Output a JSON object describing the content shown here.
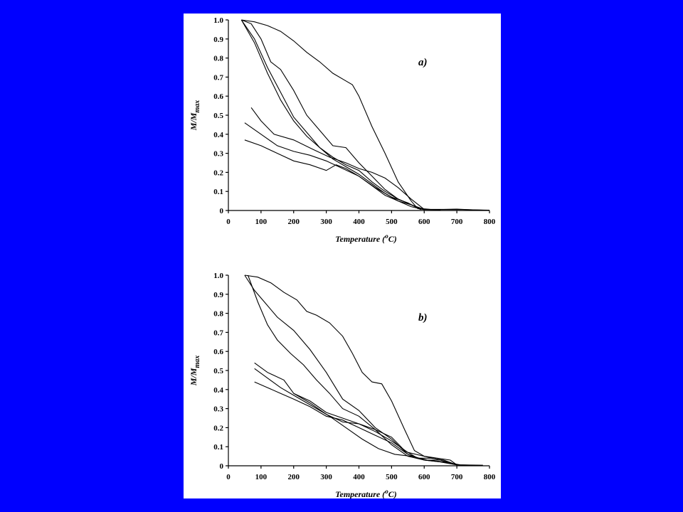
{
  "background_color": "#0000FF",
  "panel_color": "#FFFFFF",
  "chart_data": [
    {
      "type": "line",
      "panel_label": "a)",
      "xlabel": "Temperature (",
      "xlabel_sup": "o",
      "xlabel_tail": "C)",
      "ylabel": "M/M",
      "ylabel_sub": "max",
      "xlim": [
        0,
        800
      ],
      "ylim": [
        0,
        1.0
      ],
      "xticks": [
        "0",
        "100",
        "200",
        "300",
        "400",
        "500",
        "600",
        "700",
        "800"
      ],
      "yticks": [
        "0",
        "0.1",
        "0.2",
        "0.3",
        "0.4",
        "0.5",
        "0.6",
        "0.7",
        "0.8",
        "0.9",
        "1.0"
      ],
      "series": [
        {
          "x": [
            40,
            80,
            120,
            160,
            200,
            240,
            280,
            320,
            360,
            380,
            400,
            440,
            480,
            520,
            560,
            580,
            600,
            640,
            680,
            720,
            760,
            800
          ],
          "y": [
            1.0,
            0.99,
            0.97,
            0.94,
            0.89,
            0.83,
            0.78,
            0.72,
            0.68,
            0.66,
            0.6,
            0.44,
            0.3,
            0.15,
            0.05,
            0.01,
            0.005,
            0.005,
            0.005,
            0.005,
            0.003,
            0.002
          ]
        },
        {
          "x": [
            40,
            70,
            100,
            130,
            160,
            200,
            240,
            280,
            320,
            360,
            400,
            440,
            480,
            520,
            560,
            590,
            620,
            660,
            700,
            740,
            780
          ],
          "y": [
            1.0,
            0.98,
            0.9,
            0.78,
            0.74,
            0.63,
            0.5,
            0.42,
            0.34,
            0.33,
            0.25,
            0.18,
            0.11,
            0.06,
            0.03,
            0.01,
            0.006,
            0.006,
            0.007,
            0.004,
            0.002
          ]
        },
        {
          "x": [
            40,
            80,
            120,
            160,
            200,
            240,
            280,
            320,
            360,
            400,
            440,
            480,
            520,
            560,
            600,
            650
          ],
          "y": [
            1.0,
            0.9,
            0.75,
            0.62,
            0.49,
            0.41,
            0.33,
            0.28,
            0.24,
            0.21,
            0.15,
            0.1,
            0.06,
            0.03,
            0.006,
            0.004
          ]
        },
        {
          "x": [
            40,
            80,
            120,
            160,
            200,
            240,
            280,
            320,
            360,
            400,
            440,
            480,
            520,
            560,
            600
          ],
          "y": [
            1.0,
            0.88,
            0.72,
            0.58,
            0.47,
            0.39,
            0.33,
            0.27,
            0.23,
            0.19,
            0.14,
            0.09,
            0.05,
            0.02,
            0.004
          ]
        },
        {
          "x": [
            70,
            100,
            140,
            200,
            260,
            310,
            360,
            400,
            440,
            480,
            520,
            560,
            600,
            650
          ],
          "y": [
            0.54,
            0.47,
            0.4,
            0.37,
            0.32,
            0.28,
            0.25,
            0.22,
            0.2,
            0.17,
            0.12,
            0.06,
            0.006,
            0.004
          ]
        },
        {
          "x": [
            50,
            100,
            150,
            200,
            250,
            300,
            350,
            400,
            450,
            500,
            550,
            590
          ],
          "y": [
            0.46,
            0.4,
            0.34,
            0.31,
            0.29,
            0.26,
            0.22,
            0.18,
            0.12,
            0.07,
            0.04,
            0.005
          ]
        },
        {
          "x": [
            50,
            100,
            150,
            200,
            250,
            300,
            330,
            360,
            400,
            440,
            480,
            520,
            560,
            590
          ],
          "y": [
            0.37,
            0.34,
            0.3,
            0.26,
            0.24,
            0.21,
            0.24,
            0.22,
            0.18,
            0.13,
            0.08,
            0.05,
            0.03,
            0.005
          ]
        }
      ]
    },
    {
      "type": "line",
      "panel_label": "b)",
      "xlabel": "Temperature (",
      "xlabel_sup": "o",
      "xlabel_tail": "C)",
      "ylabel": "M/M",
      "ylabel_sub": "max",
      "xlim": [
        0,
        800
      ],
      "ylim": [
        0,
        1.0
      ],
      "xticks": [
        "0",
        "100",
        "200",
        "300",
        "400",
        "500",
        "600",
        "700",
        "800"
      ],
      "yticks": [
        "0",
        "0.1",
        "0.2",
        "0.3",
        "0.4",
        "0.5",
        "0.6",
        "0.7",
        "0.8",
        "0.9",
        "1.0"
      ],
      "series": [
        {
          "x": [
            50,
            90,
            130,
            170,
            210,
            240,
            270,
            310,
            350,
            380,
            410,
            440,
            470,
            500,
            540,
            570,
            600,
            640,
            680,
            700,
            740,
            780
          ],
          "y": [
            1.0,
            0.99,
            0.96,
            0.91,
            0.87,
            0.81,
            0.79,
            0.75,
            0.68,
            0.59,
            0.49,
            0.44,
            0.43,
            0.34,
            0.19,
            0.08,
            0.05,
            0.04,
            0.03,
            0.005,
            0.004,
            0.003
          ]
        },
        {
          "x": [
            50,
            80,
            110,
            150,
            200,
            250,
            300,
            350,
            400,
            450,
            500,
            550,
            600,
            650,
            700,
            750
          ],
          "y": [
            1.0,
            0.92,
            0.86,
            0.78,
            0.71,
            0.61,
            0.49,
            0.35,
            0.29,
            0.2,
            0.14,
            0.06,
            0.03,
            0.02,
            0.005,
            0.003
          ]
        },
        {
          "x": [
            60,
            90,
            120,
            150,
            190,
            230,
            270,
            310,
            350,
            400,
            450,
            500,
            550,
            600,
            650,
            700
          ],
          "y": [
            1.0,
            0.86,
            0.74,
            0.66,
            0.59,
            0.53,
            0.45,
            0.38,
            0.3,
            0.26,
            0.19,
            0.11,
            0.05,
            0.03,
            0.02,
            0.005
          ]
        },
        {
          "x": [
            80,
            120,
            170,
            200,
            250,
            300,
            350,
            400,
            450,
            500,
            550,
            600,
            650,
            700
          ],
          "y": [
            0.54,
            0.49,
            0.45,
            0.38,
            0.33,
            0.27,
            0.23,
            0.22,
            0.18,
            0.13,
            0.07,
            0.05,
            0.03,
            0.005
          ]
        },
        {
          "x": [
            80,
            120,
            160,
            210,
            260,
            310,
            360,
            410,
            460,
            510,
            560,
            610,
            660,
            710
          ],
          "y": [
            0.51,
            0.46,
            0.41,
            0.36,
            0.31,
            0.26,
            0.2,
            0.14,
            0.09,
            0.06,
            0.05,
            0.03,
            0.02,
            0.005
          ]
        },
        {
          "x": [
            80,
            120,
            160,
            200,
            250,
            300,
            350,
            400,
            450,
            500,
            550,
            600,
            650,
            700
          ],
          "y": [
            0.44,
            0.41,
            0.38,
            0.35,
            0.31,
            0.26,
            0.24,
            0.2,
            0.16,
            0.12,
            0.06,
            0.03,
            0.03,
            0.005
          ]
        },
        {
          "x": [
            200,
            250,
            300,
            350,
            400,
            450,
            500,
            540,
            580,
            620,
            660,
            700
          ],
          "y": [
            0.38,
            0.34,
            0.28,
            0.25,
            0.22,
            0.19,
            0.15,
            0.08,
            0.04,
            0.04,
            0.03,
            0.005
          ]
        }
      ]
    }
  ]
}
